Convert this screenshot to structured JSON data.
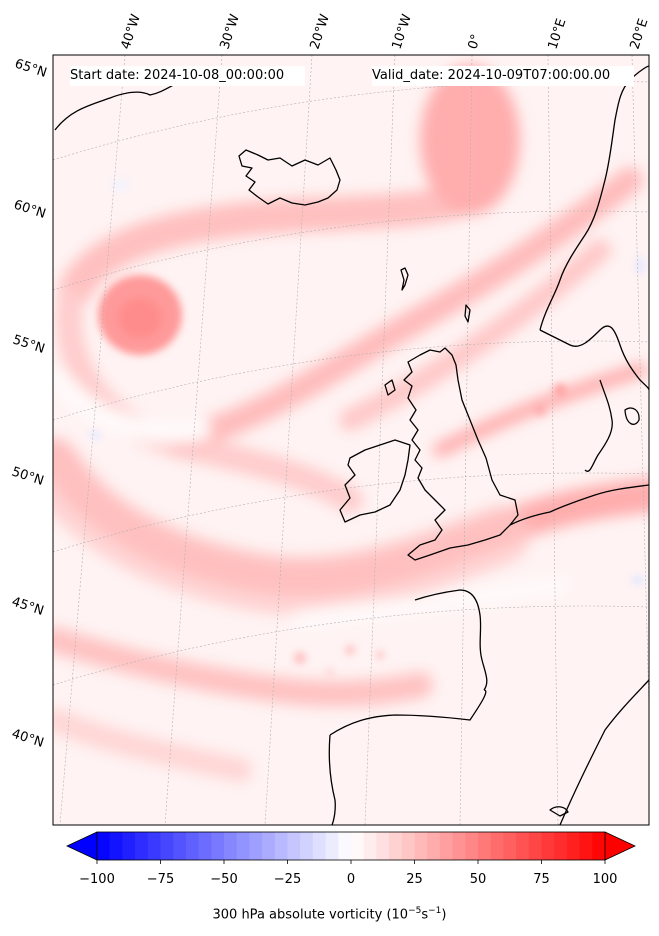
{
  "header": {
    "start_date": "Start date: 2024-10-08_00:00:00",
    "valid_date": "Valid_date: 2024-10-09T07:00:00.00"
  },
  "lon_labels": [
    "40°W",
    "30°W",
    "20°W",
    "10°W",
    "0°",
    "10°E",
    "20°E"
  ],
  "lat_labels": [
    "65°N",
    "60°N",
    "55°N",
    "50°N",
    "45°N",
    "40°N"
  ],
  "colorbar": {
    "title": "300 hPa absolute vorticity (10",
    "title_exp1": "−5",
    "title_mid": "s",
    "title_exp2": "−1",
    "title_end": ")",
    "ticks": [
      "−100",
      "−75",
      "−50",
      "−25",
      "0",
      "25",
      "50",
      "75",
      "100"
    ],
    "min": -100,
    "max": 100,
    "colormap": "bwr",
    "low_color": "#0000ff",
    "mid_color": "#ffffff",
    "high_color": "#ff0000"
  },
  "colors": {
    "coastline": "#000000",
    "field_base": "#fff2f2",
    "gridline": "#aaaaaa"
  }
}
